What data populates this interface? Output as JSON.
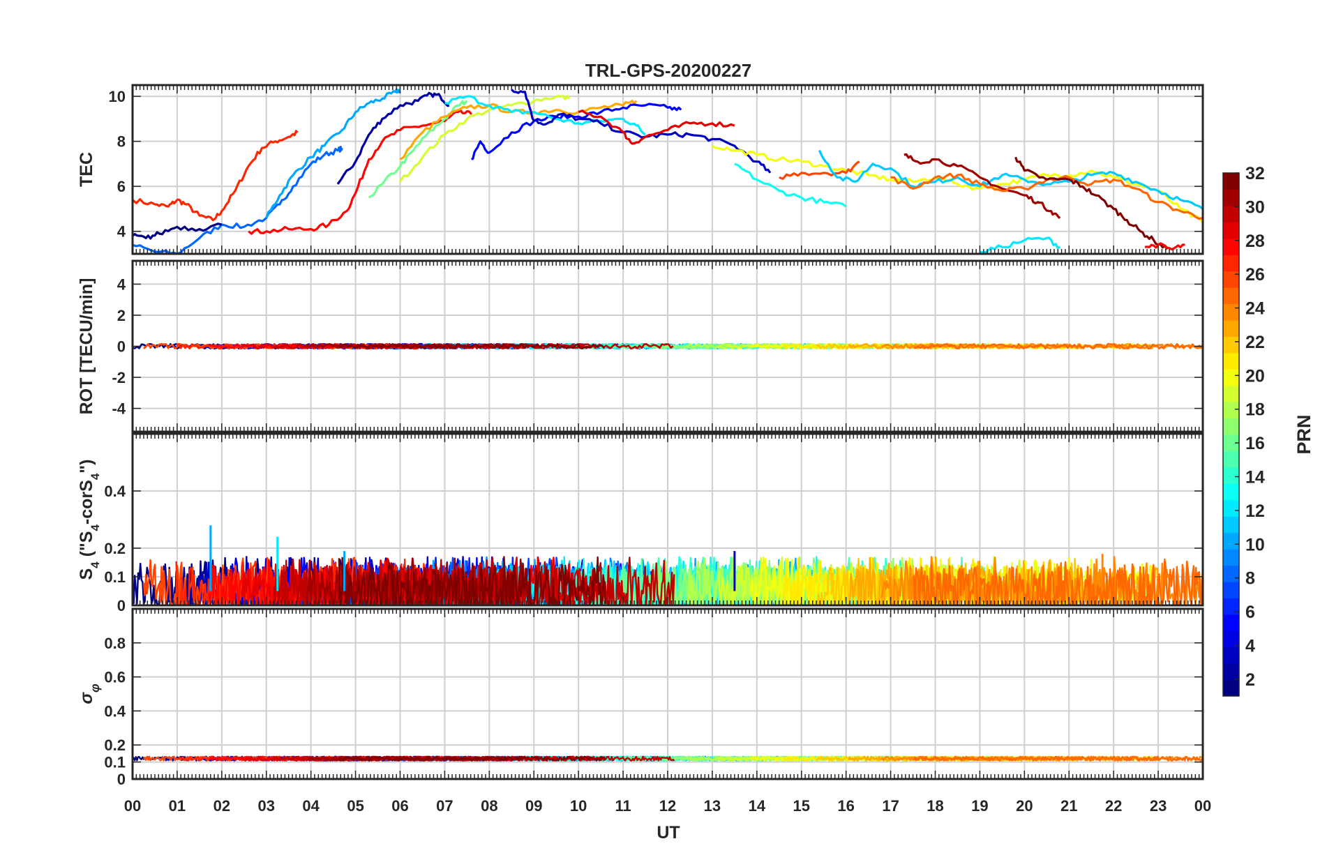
{
  "chart_data": {
    "type": "line",
    "title": "TRL-GPS-20200227",
    "xlabel": "UT",
    "x_ticks": [
      "00",
      "01",
      "02",
      "03",
      "04",
      "05",
      "06",
      "07",
      "08",
      "09",
      "10",
      "11",
      "12",
      "13",
      "14",
      "15",
      "16",
      "17",
      "18",
      "19",
      "20",
      "21",
      "22",
      "23",
      "00"
    ],
    "xlim": [
      0,
      24
    ],
    "grid": true,
    "colormap": "jet",
    "colorbar": {
      "label": "PRN",
      "range": [
        1,
        32
      ],
      "ticks": [
        "2",
        "4",
        "6",
        "8",
        "10",
        "12",
        "14",
        "16",
        "18",
        "20",
        "22",
        "24",
        "26",
        "28",
        "30",
        "32"
      ]
    },
    "panels": [
      {
        "id": "tec",
        "ylabel": "TEC",
        "ylim": [
          3,
          10.5
        ],
        "yticks": [
          4,
          6,
          8,
          10
        ],
        "ytick_labels": [
          "4",
          "6",
          "8",
          "10"
        ],
        "series": [
          {
            "prn": 27,
            "x": [
              0.0,
              0.5,
              0.8,
              1.0,
              1.2,
              1.5,
              1.8,
              2.0,
              2.3,
              2.6,
              2.9,
              3.2,
              3.5,
              3.7
            ],
            "y": [
              5.4,
              5.2,
              5.1,
              5.4,
              5.2,
              4.7,
              4.5,
              4.9,
              5.8,
              6.9,
              7.7,
              8.0,
              8.2,
              8.4
            ]
          },
          {
            "prn": 8,
            "x": [
              0.0,
              0.5,
              1.0,
              1.5,
              2.0,
              2.5,
              3.0,
              3.3,
              3.6,
              4.0,
              4.3,
              4.6,
              4.7
            ],
            "y": [
              3.4,
              3.1,
              3.0,
              3.7,
              4.3,
              4.2,
              4.6,
              5.2,
              6.0,
              7.0,
              7.4,
              7.6,
              7.7
            ]
          },
          {
            "prn": 10,
            "x": [
              3.0,
              3.3,
              3.6,
              4.0,
              4.3,
              4.7,
              5.0,
              5.3,
              5.6,
              5.9,
              6.0
            ],
            "y": [
              4.6,
              5.6,
              6.5,
              7.3,
              7.8,
              8.5,
              9.3,
              9.7,
              9.9,
              10.2,
              10.3
            ]
          },
          {
            "prn": 2,
            "x": [
              4.6,
              5.0,
              5.3,
              5.6,
              6.0,
              6.4,
              6.7,
              6.9,
              7.1
            ],
            "y": [
              6.1,
              7.1,
              8.3,
              9.0,
              9.6,
              9.8,
              10.1,
              10.0,
              9.6
            ]
          },
          {
            "prn": 28,
            "x": [
              2.6,
              3.0,
              3.5,
              4.0,
              4.4,
              4.8,
              5.0,
              5.3,
              5.6,
              6.0,
              6.5,
              7.0,
              7.3,
              7.6
            ],
            "y": [
              4.0,
              4.0,
              4.1,
              4.1,
              4.3,
              4.9,
              5.7,
              7.2,
              8.0,
              8.5,
              8.7,
              8.9,
              9.3,
              9.2
            ]
          },
          {
            "prn": 16,
            "x": [
              5.3,
              5.6,
              6.0,
              6.3,
              6.6,
              7.0,
              7.3,
              7.5
            ],
            "y": [
              5.5,
              6.1,
              6.9,
              7.6,
              8.3,
              9.0,
              9.6,
              9.8
            ]
          },
          {
            "prn": 19,
            "x": [
              6.0,
              6.5,
              7.0,
              7.5,
              8.0,
              8.5,
              9.0,
              9.5,
              9.8
            ],
            "y": [
              6.2,
              7.3,
              8.3,
              9.0,
              9.4,
              9.6,
              9.8,
              10.0,
              9.9
            ]
          },
          {
            "prn": 23,
            "x": [
              6.0,
              6.5,
              7.0,
              7.5,
              8.0,
              8.5,
              9.0,
              9.5,
              10.0,
              10.5,
              11.0,
              11.3
            ],
            "y": [
              7.2,
              8.4,
              9.1,
              9.5,
              9.6,
              9.3,
              9.3,
              9.4,
              9.3,
              9.5,
              9.6,
              9.8
            ]
          },
          {
            "prn": 5,
            "x": [
              7.6,
              7.8,
              8.0,
              8.5,
              9.0,
              9.5,
              10.0,
              10.5,
              11.0,
              11.5,
              12.0,
              12.3
            ],
            "y": [
              7.2,
              8.0,
              7.5,
              8.4,
              8.9,
              9.1,
              9.1,
              9.3,
              9.5,
              9.6,
              9.5,
              9.4
            ]
          },
          {
            "prn": 12,
            "x": [
              7.0,
              7.5,
              8.0,
              8.5,
              9.0,
              9.5,
              10.0,
              10.5,
              11.0,
              11.3,
              11.5
            ],
            "y": [
              9.7,
              10.0,
              9.6,
              9.3,
              9.3,
              9.0,
              8.8,
              8.9,
              9.0,
              8.7,
              8.3
            ]
          },
          {
            "prn": 3,
            "x": [
              8.5,
              8.8,
              9.0,
              9.3,
              9.6,
              10.0,
              10.5,
              11.0,
              11.5,
              12.0,
              12.5,
              13.0,
              13.5,
              14.0,
              14.3
            ],
            "y": [
              10.3,
              10.2,
              8.9,
              8.8,
              9.2,
              9.0,
              8.8,
              8.4,
              8.2,
              8.3,
              8.3,
              8.1,
              7.8,
              7.1,
              6.6
            ]
          },
          {
            "prn": 29,
            "x": [
              10.0,
              10.5,
              11.0,
              11.2,
              11.5,
              12.0,
              12.5,
              13.0,
              13.5
            ],
            "y": [
              9.3,
              9.1,
              8.4,
              7.9,
              8.2,
              8.5,
              8.8,
              8.8,
              8.7
            ]
          },
          {
            "prn": 20,
            "x": [
              13.0,
              13.5,
              14.0,
              14.5,
              15.0,
              15.5,
              16.0,
              16.5,
              17.0,
              17.5,
              18.0,
              18.5,
              19.0,
              19.5,
              20.0,
              20.5,
              21.0,
              21.5,
              22.0,
              22.5,
              23.0,
              23.5,
              24.0
            ],
            "y": [
              7.8,
              7.6,
              7.4,
              7.2,
              7.1,
              6.9,
              6.7,
              6.5,
              6.3,
              6.2,
              6.4,
              6.1,
              5.9,
              6.1,
              6.3,
              6.5,
              6.5,
              6.7,
              6.4,
              6.1,
              5.8,
              5.0,
              4.4
            ]
          },
          {
            "prn": 13,
            "x": [
              13.5,
              14.0,
              14.5,
              15.0,
              15.5,
              16.0
            ],
            "y": [
              7.0,
              6.3,
              5.8,
              5.5,
              5.3,
              5.1
            ]
          },
          {
            "prn": 26,
            "x": [
              14.5,
              15.0,
              15.5,
              16.0,
              16.3
            ],
            "y": [
              6.4,
              6.6,
              6.6,
              6.6,
              7.1
            ]
          },
          {
            "prn": 11,
            "x": [
              15.4,
              15.8,
              16.2,
              16.6,
              17.0,
              17.5,
              18.0,
              18.5,
              19.0,
              19.5,
              20.0,
              20.5,
              21.0,
              21.5,
              22.0,
              22.5,
              23.0,
              23.5,
              24.0
            ],
            "y": [
              7.6,
              6.4,
              6.2,
              7.0,
              6.8,
              6.0,
              6.2,
              6.4,
              6.0,
              6.5,
              6.3,
              6.1,
              6.2,
              6.5,
              6.6,
              6.2,
              5.8,
              5.4,
              5.0
            ]
          },
          {
            "prn": 31,
            "x": [
              17.3,
              17.6,
              18.0,
              18.5,
              19.0,
              19.5,
              20.0,
              20.3,
              20.6,
              20.8
            ],
            "y": [
              7.4,
              7.1,
              7.2,
              6.9,
              6.4,
              5.9,
              5.6,
              5.3,
              4.9,
              4.6
            ]
          },
          {
            "prn": 25,
            "x": [
              17.0,
              17.5,
              18.0,
              18.5,
              19.0,
              19.5,
              20.0,
              20.5,
              21.0,
              21.5,
              22.0,
              22.5,
              23.0,
              23.5,
              24.0
            ],
            "y": [
              6.4,
              5.9,
              6.4,
              6.5,
              6.1,
              5.8,
              5.9,
              6.3,
              6.4,
              6.1,
              6.3,
              5.9,
              5.3,
              4.9,
              4.6
            ]
          },
          {
            "prn": 32,
            "x": [
              19.8,
              20.0,
              20.5,
              21.0,
              21.3,
              21.6,
              22.0,
              22.3,
              22.6,
              22.9,
              23.2
            ],
            "y": [
              7.3,
              6.7,
              6.3,
              6.3,
              6.0,
              5.6,
              5.0,
              4.5,
              4.0,
              3.6,
              3.2
            ]
          },
          {
            "prn": 12,
            "x": [
              19.0,
              19.5,
              20.0,
              20.5,
              20.8
            ],
            "y": [
              3.1,
              3.3,
              3.6,
              3.7,
              3.3
            ]
          },
          {
            "prn": 28,
            "x": [
              22.7,
              23.0,
              23.3,
              23.6
            ],
            "y": [
              3.3,
              3.4,
              3.2,
              3.4
            ]
          },
          {
            "prn": 1,
            "x": [
              0.0,
              0.3,
              0.6,
              1.0,
              1.5,
              2.0
            ],
            "y": [
              3.8,
              3.7,
              3.9,
              4.2,
              4.1,
              4.3
            ]
          }
        ]
      },
      {
        "id": "rot",
        "ylabel": "ROT [TECU/min]",
        "ylim": [
          -5.5,
          5.5
        ],
        "yticks": [
          -4,
          -2,
          0,
          2,
          4
        ],
        "ytick_labels": [
          "-4",
          "-2",
          "0",
          "2",
          "4"
        ],
        "description": "all PRN traces stay within about ±0.2 TECU/min around 0",
        "amplitude": 0.15
      },
      {
        "id": "s4",
        "ylabel_main": "S",
        "ylabel_sub": "4",
        "ylabel_mid": " (\"S",
        "ylabel_sub2": "4",
        "ylabel_end": "-corS",
        "ylabel_sub3": "4",
        "ylabel_close": "\")",
        "ylim": [
          0,
          0.6
        ],
        "yticks": [
          0,
          0.1,
          0.2,
          0.4
        ],
        "ytick_labels": [
          "0",
          "0.1",
          "0.2",
          "0.4"
        ],
        "baseline": 0.05,
        "typical_max": 0.14,
        "peaks": [
          {
            "x": 1.75,
            "y": 0.28,
            "prn": 10
          },
          {
            "x": 3.25,
            "y": 0.24,
            "prn": 12
          },
          {
            "x": 4.75,
            "y": 0.19,
            "prn": 10
          },
          {
            "x": 13.5,
            "y": 0.19,
            "prn": 4
          },
          {
            "x": 21.75,
            "y": 0.18,
            "prn": 24
          }
        ]
      },
      {
        "id": "sigma",
        "ylabel_main": "σ",
        "ylabel_sub": "φ",
        "ylim": [
          0,
          1
        ],
        "yticks": [
          0,
          0.1,
          0.2,
          0.4,
          0.6,
          0.8
        ],
        "ytick_labels": [
          "0",
          "0.1",
          "0.2",
          "0.4",
          "0.6",
          "0.8"
        ],
        "baseline": 0.12,
        "typical_max": 0.15
      }
    ]
  }
}
